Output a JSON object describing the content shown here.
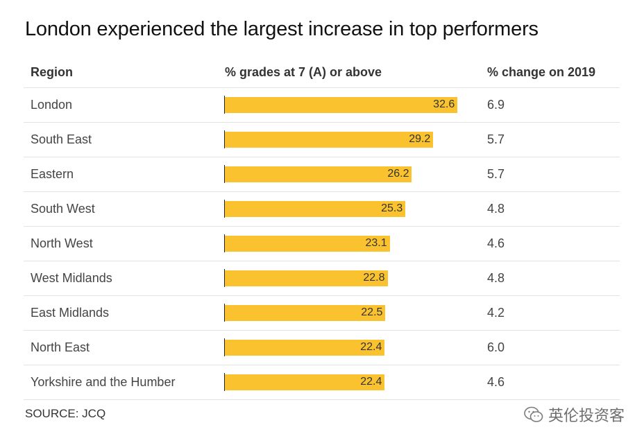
{
  "title": "London experienced the largest increase in top performers",
  "headers": {
    "region": "Region",
    "grades": "% grades at 7 (A) or above",
    "change": "% change on 2019"
  },
  "source": "SOURCE: JCQ",
  "watermark": "英伦投资客",
  "colors": {
    "bar": "#f9c22e",
    "axis": "#222222",
    "divider": "#e2e2e2"
  },
  "chart_data": {
    "type": "bar",
    "orientation": "horizontal",
    "xlim": [
      0,
      35
    ],
    "categories": [
      "London",
      "South East",
      "Eastern",
      "South West",
      "North West",
      "West Midlands",
      "East Midlands",
      "North East",
      "Yorkshire and the Humber"
    ],
    "series": [
      {
        "name": "% grades at 7 (A) or above",
        "values": [
          32.6,
          29.2,
          26.2,
          25.3,
          23.1,
          22.8,
          22.5,
          22.4,
          22.4
        ],
        "labels": [
          "32.6",
          "29.2",
          "26.2",
          "25.3",
          "23.1",
          "22.8",
          "22.5",
          "22.4",
          "22.4"
        ]
      }
    ],
    "change_on_2019": [
      "6.9",
      "5.7",
      "5.7",
      "4.8",
      "4.6",
      "4.8",
      "4.2",
      "6.0",
      "4.6"
    ]
  }
}
